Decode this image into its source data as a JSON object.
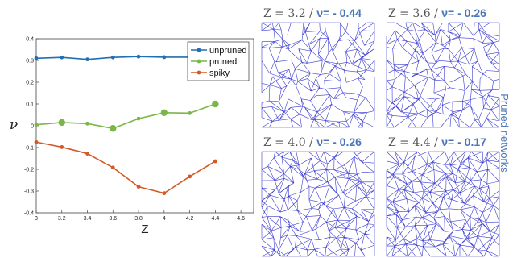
{
  "chart_data": {
    "type": "line",
    "title": "",
    "xlabel": "Z",
    "ylabel": "ν",
    "xlim": [
      3.0,
      4.7
    ],
    "ylim": [
      -0.4,
      0.4
    ],
    "xticks": [
      3,
      3.2,
      3.4,
      3.6,
      3.8,
      4,
      4.2,
      4.4,
      4.6
    ],
    "xtick_labels": [
      "3",
      "3.2",
      "3.4",
      "3.6",
      "3.8",
      "4",
      "4.2",
      "4.4",
      "4.6"
    ],
    "yticks": [
      -0.4,
      -0.3,
      -0.2,
      -0.1,
      0,
      0.1,
      0.2,
      0.3,
      0.4
    ],
    "ytick_labels": [
      "-0.4",
      "-0.3",
      "-0.2",
      "-0.1",
      "0",
      "0.1",
      "0.2",
      "0.3",
      "0.4"
    ],
    "grid": false,
    "legend_position": "top-right",
    "series": [
      {
        "name": "unpruned",
        "color": "#1f6fb4",
        "x": [
          3.0,
          3.2,
          3.4,
          3.6,
          3.8,
          4.0,
          4.2,
          4.4
        ],
        "y": [
          0.31,
          0.314,
          0.305,
          0.314,
          0.318,
          0.315,
          0.315,
          0.315
        ],
        "big_markers": []
      },
      {
        "name": "pruned",
        "color": "#7ab648",
        "x": [
          3.0,
          3.2,
          3.4,
          3.6,
          3.8,
          4.0,
          4.2,
          4.4
        ],
        "y": [
          0.005,
          0.015,
          0.01,
          -0.012,
          0.033,
          0.06,
          0.058,
          0.1
        ],
        "big_markers": [
          1,
          3,
          5,
          7
        ]
      },
      {
        "name": "spiky",
        "color": "#d35a28",
        "x": [
          3.0,
          3.2,
          3.4,
          3.6,
          3.8,
          4.0,
          4.2,
          4.4
        ],
        "y": [
          -0.075,
          -0.098,
          -0.128,
          -0.192,
          -0.28,
          -0.31,
          -0.233,
          -0.163
        ],
        "big_markers": []
      }
    ]
  },
  "networks": {
    "side_label": "Pruned networks",
    "edge_color": "#3a3ad0",
    "panels": [
      {
        "z_text": "Z  = 3.2 / ",
        "nu_text": "ν= - 0.44",
        "density": 3.2
      },
      {
        "z_text": "Z  = 3.6 / ",
        "nu_text": "ν= - 0.26",
        "density": 3.6
      },
      {
        "z_text": "Z  = 4.0 / ",
        "nu_text": "ν= - 0.26",
        "density": 4.0
      },
      {
        "z_text": "Z  = 4.4 / ",
        "nu_text": "ν= - 0.17",
        "density": 4.4
      }
    ]
  }
}
